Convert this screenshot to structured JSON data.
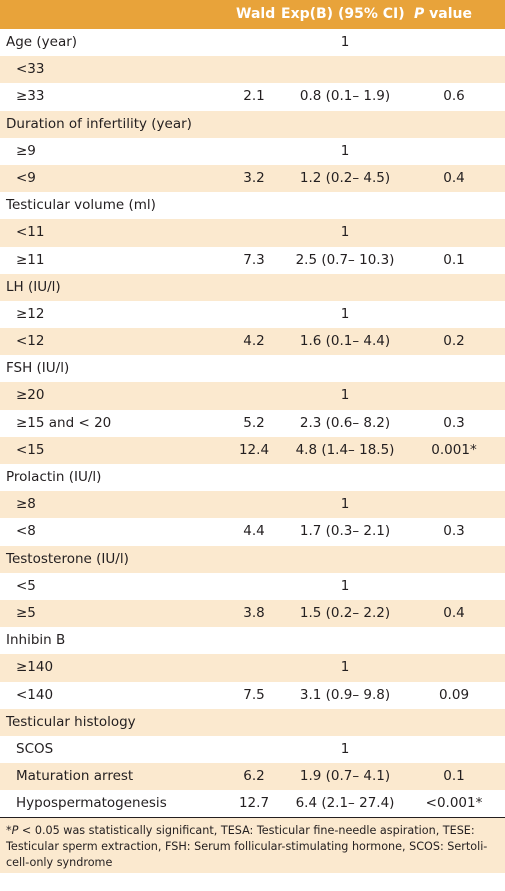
{
  "header": {
    "col_label": "",
    "col_wald": "Wald",
    "col_exp": "Exp(B) (95% CI)",
    "col_p_italic": "P",
    "col_p_rest": " value"
  },
  "rows": [
    {
      "label": "Age (year)",
      "wald": "",
      "exp": "1",
      "p": "",
      "sub": false
    },
    {
      "label": "<33",
      "wald": "",
      "exp": "",
      "p": "",
      "sub": true
    },
    {
      "label": "≥33",
      "wald": "2.1",
      "exp": "0.8 (0.1– 1.9)",
      "p": "0.6",
      "sub": true
    },
    {
      "label": "Duration of infertility (year)",
      "wald": "",
      "exp": "",
      "p": "",
      "sub": false
    },
    {
      "label": "≥9",
      "wald": "",
      "exp": "1",
      "p": "",
      "sub": true
    },
    {
      "label": "<9",
      "wald": "3.2",
      "exp": "1.2 (0.2– 4.5)",
      "p": "0.4",
      "sub": true
    },
    {
      "label": "Testicular volume (ml)",
      "wald": "",
      "exp": "",
      "p": "",
      "sub": false
    },
    {
      "label": "<11",
      "wald": "",
      "exp": "1",
      "p": "",
      "sub": true
    },
    {
      "label": "≥11",
      "wald": "7.3",
      "exp": "2.5 (0.7– 10.3)",
      "p": "0.1",
      "sub": true
    },
    {
      "label": "LH (IU/l)",
      "wald": "",
      "exp": "",
      "p": "",
      "sub": false
    },
    {
      "label": "≥12",
      "wald": "",
      "exp": "1",
      "p": "",
      "sub": true
    },
    {
      "label": "<12",
      "wald": "4.2",
      "exp": "1.6 (0.1– 4.4)",
      "p": "0.2",
      "sub": true
    },
    {
      "label": "FSH (IU/l)",
      "wald": "",
      "exp": "",
      "p": "",
      "sub": false
    },
    {
      "label": "≥20",
      "wald": "",
      "exp": "1",
      "p": "",
      "sub": true
    },
    {
      "label": "≥15 and < 20",
      "wald": "5.2",
      "exp": "2.3 (0.6– 8.2)",
      "p": "0.3",
      "sub": true
    },
    {
      "label": "<15",
      "wald": "12.4",
      "exp": "4.8 (1.4– 18.5)",
      "p": "0.001*",
      "sub": true
    },
    {
      "label": "Prolactin (IU/l)",
      "wald": "",
      "exp": "",
      "p": "",
      "sub": false
    },
    {
      "label": "≥8",
      "wald": "",
      "exp": "1",
      "p": "",
      "sub": true
    },
    {
      "label": "<8",
      "wald": "4.4",
      "exp": "1.7 (0.3– 2.1)",
      "p": "0.3",
      "sub": true
    },
    {
      "label": "Testosterone (IU/l)",
      "wald": "",
      "exp": "",
      "p": "",
      "sub": false
    },
    {
      "label": "<5",
      "wald": "",
      "exp": "1",
      "p": "",
      "sub": true
    },
    {
      "label": "≥5",
      "wald": "3.8",
      "exp": "1.5 (0.2– 2.2)",
      "p": "0.4",
      "sub": true
    },
    {
      "label": "Inhibin B",
      "wald": "",
      "exp": "",
      "p": "",
      "sub": false
    },
    {
      "label": "≥140",
      "wald": "",
      "exp": "1",
      "p": "",
      "sub": true
    },
    {
      "label": "<140",
      "wald": "7.5",
      "exp": "3.1 (0.9– 9.8)",
      "p": "0.09",
      "sub": true
    },
    {
      "label": "Testicular histology",
      "wald": "",
      "exp": "",
      "p": "",
      "sub": false
    },
    {
      "label": "SCOS",
      "wald": "",
      "exp": "1",
      "p": "",
      "sub": true
    },
    {
      "label": "Maturation arrest",
      "wald": "6.2",
      "exp": "1.9 (0.7– 4.1)",
      "p": "0.1",
      "sub": true
    },
    {
      "label": "Hypospermatogenesis",
      "wald": "12.7",
      "exp": "6.4 (2.1– 27.4)",
      "p": "<0.001*",
      "sub": true
    }
  ],
  "footnote": {
    "p_italic": "P",
    "text": " < 0.05 was statistically significant, TESA: Testicular fine-needle aspiration, TESE: Testicular sperm extraction, FSH: Serum follicular-stimulating hormone, SCOS: Sertoli-cell-only syndrome",
    "prefix": "*"
  },
  "colors": {
    "header_bg": "#e8a33a",
    "shade_bg": "#fbe9cf",
    "text": "#231f20"
  }
}
